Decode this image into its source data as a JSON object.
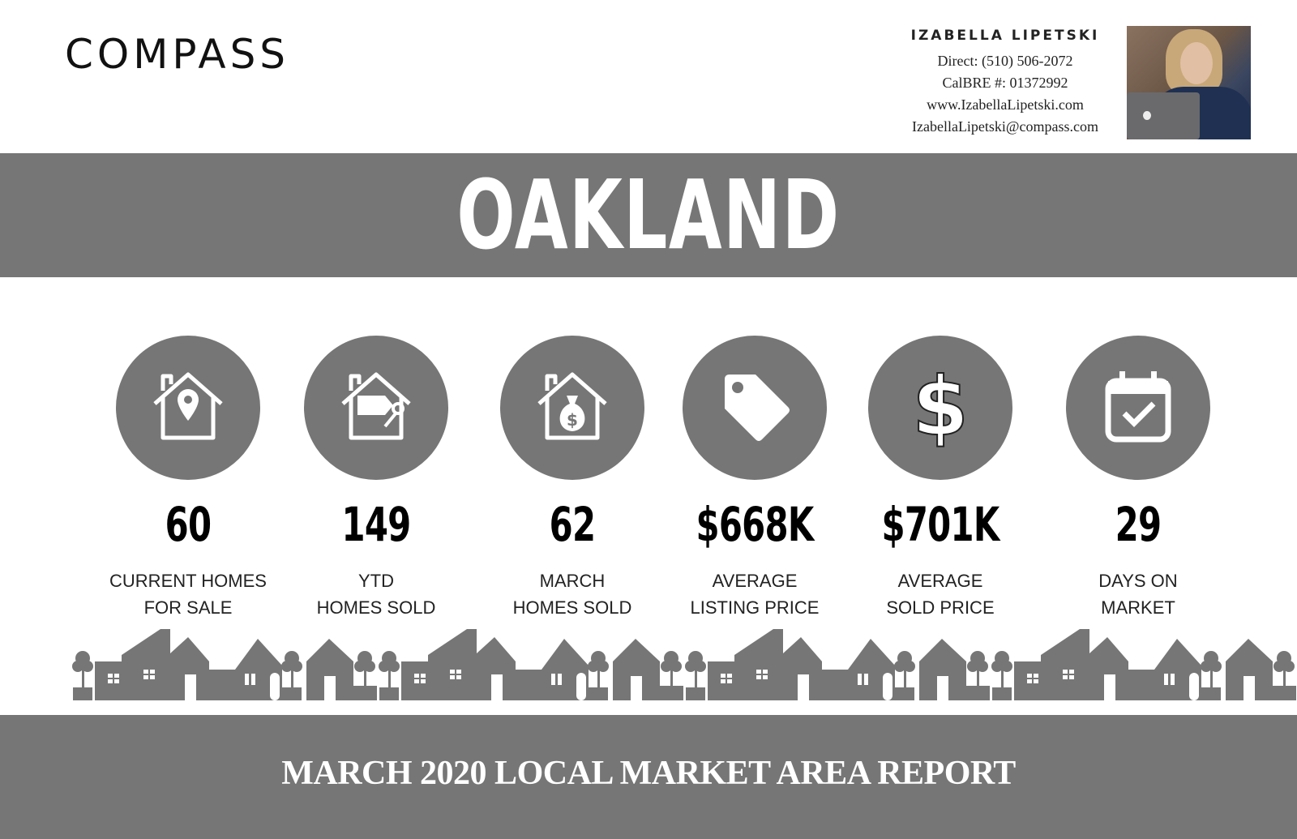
{
  "brand": {
    "logo": "COMPASS"
  },
  "agent": {
    "name": "IZABELLA LIPETSKI",
    "direct": "Direct: (510) 506-2072",
    "license": "CalBRE #: 01372992",
    "website": "www.IzabellaLipetski.com",
    "email": "IzabellaLipetski@compass.com"
  },
  "city": "OAKLAND",
  "stats": [
    {
      "icon": "house-location-pin-icon",
      "value": "60",
      "label1": "CURRENT HOMES",
      "label2": "FOR SALE"
    },
    {
      "icon": "house-tag-key-icon",
      "value": "149",
      "label1": "YTD",
      "label2": "HOMES SOLD"
    },
    {
      "icon": "house-money-bag-icon",
      "value": "62",
      "label1": "MARCH",
      "label2": "HOMES SOLD"
    },
    {
      "icon": "price-tag-icon",
      "value": "$668K",
      "label1": "AVERAGE",
      "label2": "LISTING PRICE"
    },
    {
      "icon": "dollar-sign-icon",
      "value": "$701K",
      "label1": "AVERAGE",
      "label2": "SOLD PRICE"
    },
    {
      "icon": "calendar-check-icon",
      "value": "29",
      "label1": "DAYS ON",
      "label2": "MARKET"
    }
  ],
  "footer": {
    "title": "MARCH  2020 LOCAL MARKET AREA REPORT"
  },
  "colors": {
    "band": "#767676",
    "text": "#000000"
  }
}
